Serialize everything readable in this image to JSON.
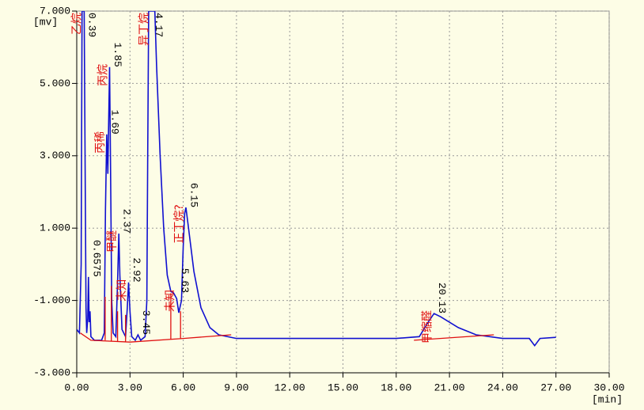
{
  "chart_data": {
    "type": "line",
    "x_label": "[min]",
    "y_label": "[mv]",
    "xlim": [
      0,
      30
    ],
    "ylim": [
      -3,
      7
    ],
    "xticks": [
      {
        "value": 0,
        "label": "0.00"
      },
      {
        "value": 3,
        "label": "3.00"
      },
      {
        "value": 6,
        "label": "6.00"
      },
      {
        "value": 9,
        "label": "9.00"
      },
      {
        "value": 12,
        "label": "12.00"
      },
      {
        "value": 15,
        "label": "15.00"
      },
      {
        "value": 18,
        "label": "18.00"
      },
      {
        "value": 21,
        "label": "21.00"
      },
      {
        "value": 24,
        "label": "24.00"
      },
      {
        "value": 27,
        "label": "27.00"
      },
      {
        "value": 30,
        "label": "30.00"
      }
    ],
    "yticks": [
      {
        "value": 7,
        "label": "7.000"
      },
      {
        "value": 5,
        "label": "5.000"
      },
      {
        "value": 3,
        "label": "3.000"
      },
      {
        "value": 1,
        "label": "1.000"
      },
      {
        "value": -1,
        "label": "-1.000"
      },
      {
        "value": -3,
        "label": "-3.000"
      }
    ],
    "grid": true,
    "series": [
      {
        "color": "#1010d0",
        "x": [
          0,
          0.15,
          0.25,
          0.3,
          0.42,
          0.48,
          0.52,
          0.56,
          0.62,
          0.66,
          0.7,
          0.75,
          0.8,
          1.0,
          1.4,
          1.55,
          1.62,
          1.69,
          1.75,
          1.8,
          1.85,
          1.9,
          1.97,
          2.05,
          2.2,
          2.3,
          2.37,
          2.43,
          2.55,
          2.75,
          2.85,
          2.92,
          3.0,
          3.1,
          3.3,
          3.45,
          3.6,
          3.85,
          3.95,
          4.0,
          4.05,
          4.4,
          4.5,
          4.7,
          4.9,
          5.1,
          5.3,
          5.45,
          5.63,
          5.75,
          5.9,
          6.0,
          6.08,
          6.15,
          6.3,
          6.6,
          7.0,
          7.5,
          8.0,
          9.0,
          12,
          15,
          18,
          19.3,
          19.8,
          20.13,
          20.5,
          21.5,
          22.5,
          24,
          25.5,
          25.8,
          26.1,
          27.0
        ],
        "values": [
          -1.8,
          -1.9,
          0,
          7,
          7,
          2,
          -1.2,
          -1.9,
          -1.5,
          -0.35,
          -1.6,
          -1.3,
          -2.0,
          -2.1,
          -2.1,
          -1.9,
          1.5,
          3.59,
          2.5,
          4.0,
          5.45,
          3.0,
          -1.0,
          -1.9,
          -2.0,
          -0.5,
          0.85,
          -0.3,
          -1.8,
          -2.0,
          -1.2,
          -0.5,
          -1.3,
          -2.0,
          -2.1,
          -1.95,
          -2.1,
          -2.0,
          -1.0,
          3,
          7,
          7,
          5.5,
          3.0,
          1.0,
          -0.3,
          -0.75,
          -0.79,
          -0.95,
          -1.34,
          -1.0,
          0.5,
          1.4,
          1.57,
          1.0,
          -0.2,
          -1.2,
          -1.75,
          -1.95,
          -2.05,
          -2.05,
          -2.05,
          -2.05,
          -2.0,
          -1.6,
          -1.36,
          -1.45,
          -1.75,
          -1.95,
          -2.05,
          -2.05,
          -2.25,
          -2.05,
          -2.02
        ]
      },
      {
        "color": "#e01010",
        "x": [
          0.2,
          0.8,
          3.0,
          6.0,
          8.7,
          8.7,
          1.6,
          1.6,
          1.6,
          1.95,
          1.95,
          1.95,
          2.3,
          2.3,
          2.3,
          2.75,
          2.75,
          2.75,
          5.3,
          5.3,
          5.3,
          5.85,
          5.85,
          5.85,
          19.0,
          23.5
        ],
        "values": [
          -1.9,
          -2.1,
          -2.15,
          -2.05,
          -1.95,
          null,
          -2.1,
          -0.9,
          null,
          -2.12,
          -0.6,
          null,
          -2.13,
          -1.3,
          null,
          -2.14,
          -1.4,
          null,
          -2.08,
          -0.8,
          null,
          -2.06,
          -1.3,
          null,
          -2.1,
          -1.95
        ]
      }
    ],
    "peaks": [
      {
        "rt": 0.39,
        "height": 7,
        "name": "乙烷"
      },
      {
        "rt": 0.6575,
        "height": -0.35
      },
      {
        "rt": 1.69,
        "height": 3.59,
        "name": "丙稀"
      },
      {
        "rt": 1.85,
        "height": 5.45,
        "name": "丙烷"
      },
      {
        "rt": 2.37,
        "height": 0.85,
        "name": "甲醚"
      },
      {
        "rt": 2.92,
        "height": -0.5,
        "name": "未知"
      },
      {
        "rt": 3.45,
        "height": -1.95
      },
      {
        "rt": 4.17,
        "height": 7,
        "name": "异丁烷"
      },
      {
        "rt": 5.63,
        "height": -0.79,
        "name": "未知"
      },
      {
        "rt": 6.15,
        "height": 1.57,
        "name": "正丁烷?"
      },
      {
        "rt": 20.13,
        "height": -1.36,
        "name": "甲缩醛"
      }
    ]
  }
}
